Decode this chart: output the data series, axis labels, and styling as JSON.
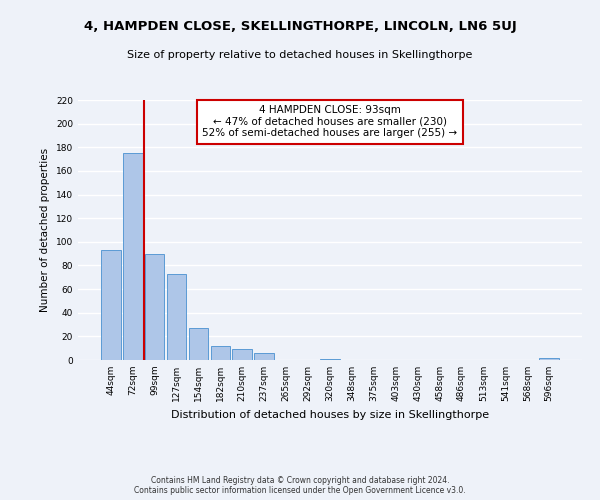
{
  "title": "4, HAMPDEN CLOSE, SKELLINGTHORPE, LINCOLN, LN6 5UJ",
  "subtitle": "Size of property relative to detached houses in Skellingthorpe",
  "xlabel": "Distribution of detached houses by size in Skellingthorpe",
  "ylabel": "Number of detached properties",
  "bar_labels": [
    "44sqm",
    "72sqm",
    "99sqm",
    "127sqm",
    "154sqm",
    "182sqm",
    "210sqm",
    "237sqm",
    "265sqm",
    "292sqm",
    "320sqm",
    "348sqm",
    "375sqm",
    "403sqm",
    "430sqm",
    "458sqm",
    "486sqm",
    "513sqm",
    "541sqm",
    "568sqm",
    "596sqm"
  ],
  "bar_values": [
    93,
    175,
    90,
    73,
    27,
    12,
    9,
    6,
    0,
    0,
    1,
    0,
    0,
    0,
    0,
    0,
    0,
    0,
    0,
    0,
    2
  ],
  "bar_color": "#aec6e8",
  "bar_edge_color": "#5b9bd5",
  "vline_x": 1.5,
  "vline_color": "#cc0000",
  "annotation_text": "4 HAMPDEN CLOSE: 93sqm\n← 47% of detached houses are smaller (230)\n52% of semi-detached houses are larger (255) →",
  "annotation_box_color": "#ffffff",
  "annotation_box_edgecolor": "#cc0000",
  "ylim": [
    0,
    220
  ],
  "yticks": [
    0,
    20,
    40,
    60,
    80,
    100,
    120,
    140,
    160,
    180,
    200,
    220
  ],
  "footnote": "Contains HM Land Registry data © Crown copyright and database right 2024.\nContains public sector information licensed under the Open Government Licence v3.0.",
  "background_color": "#eef2f9",
  "grid_color": "#ffffff"
}
